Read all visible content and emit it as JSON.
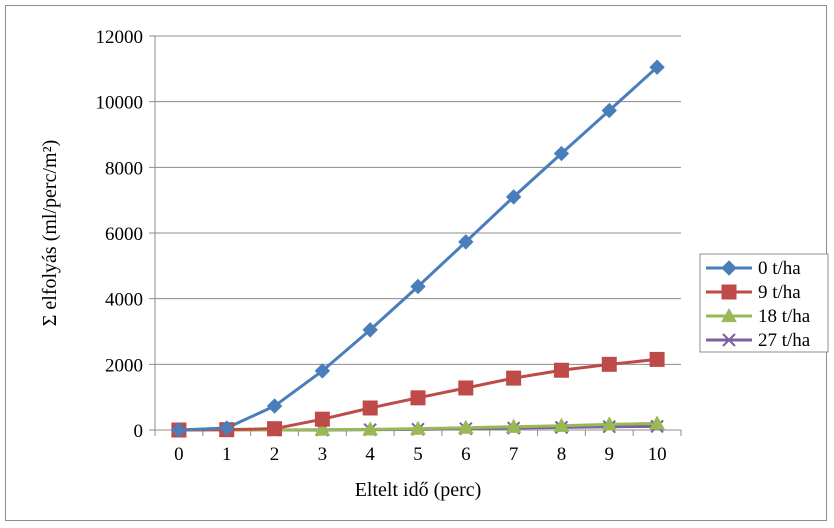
{
  "chart_data": {
    "type": "line",
    "title": "",
    "xlabel": "Eltelt idő (perc)",
    "ylabel": "Σ elfolyás (ml/perc/m²)",
    "x": [
      0,
      1,
      2,
      3,
      4,
      5,
      6,
      7,
      8,
      9,
      10
    ],
    "xlim": [
      0,
      10
    ],
    "ylim": [
      0,
      12000
    ],
    "yticks": [
      0,
      2000,
      4000,
      6000,
      8000,
      10000,
      12000
    ],
    "grid": "horizontal",
    "legend_position": "right",
    "series": [
      {
        "name": "0 t/ha",
        "color": "#4a7ebb",
        "marker": "diamond",
        "values": [
          0,
          60,
          730,
          1800,
          3050,
          4370,
          5730,
          7100,
          8420,
          9730,
          11050
        ]
      },
      {
        "name": "9 t/ha",
        "color": "#be4b48",
        "marker": "square",
        "values": [
          0,
          10,
          40,
          330,
          670,
          980,
          1280,
          1580,
          1820,
          2000,
          2150
        ]
      },
      {
        "name": "18 t/ha",
        "color": "#98b954",
        "marker": "triangle",
        "values": [
          0,
          0,
          0,
          10,
          20,
          40,
          70,
          100,
          130,
          170,
          200
        ]
      },
      {
        "name": "27 t/ha",
        "color": "#7d60a0",
        "marker": "x",
        "values": [
          0,
          0,
          0,
          0,
          10,
          20,
          40,
          60,
          80,
          100,
          110
        ]
      }
    ]
  }
}
